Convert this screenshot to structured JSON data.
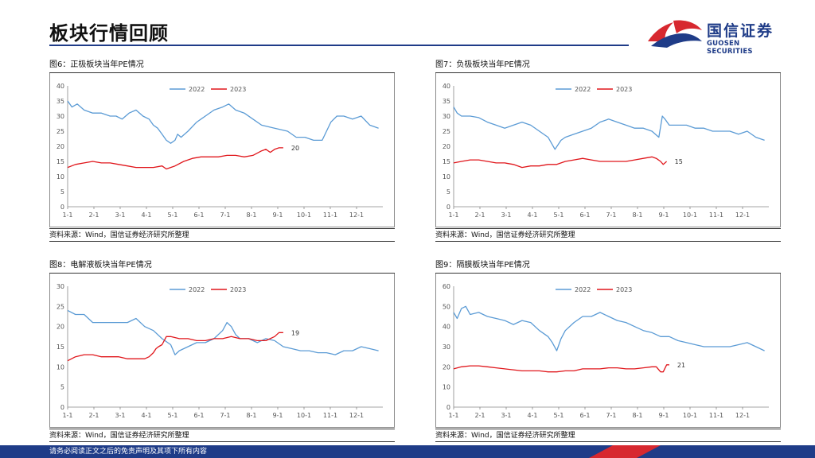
{
  "header": {
    "title": "板块行情回顾"
  },
  "logo": {
    "name_cn": "国信证券",
    "name_en": "GUOSEN SECURITIES",
    "colors": {
      "red": "#d7282f",
      "blue": "#1f3c88"
    }
  },
  "footer": {
    "disclaimer": "请务必阅读正文之后的免责声明及其项下所有内容"
  },
  "colors": {
    "series_2022": "#5b9bd5",
    "series_2023": "#e0161b"
  },
  "panels": [
    {
      "caption": "图6：正极板块当年PE情况",
      "source": "资料来源：Wind，国信证券经济研究所整理"
    },
    {
      "caption": "图7：负极板块当年PE情况",
      "source": "资料来源：Wind，国信证券经济研究所整理"
    },
    {
      "caption": "图8：电解液板块当年PE情况",
      "source": "资料来源：Wind，国信证券经济研究所整理"
    },
    {
      "caption": "图9：隔膜板块当年PE情况",
      "source": "资料来源：Wind，国信证券经济研究所整理"
    }
  ],
  "chart_data": [
    {
      "type": "line",
      "title": "图6：正极板块当年PE情况",
      "x_ticks": [
        "1-1",
        "2-1",
        "3-1",
        "4-1",
        "5-1",
        "6-1",
        "7-1",
        "8-1",
        "9-1",
        "10-1",
        "11-1",
        "12-1"
      ],
      "ylim": [
        0,
        40
      ],
      "y_ticks": [
        0,
        5,
        10,
        15,
        20,
        25,
        30,
        35,
        40
      ],
      "grid": false,
      "legend": "top",
      "end_label": "20",
      "series": [
        {
          "name": "2022",
          "x": [
            1,
            6,
            12,
            20,
            30,
            40,
            50,
            57,
            64,
            72,
            80,
            88,
            95,
            100,
            105,
            110,
            115,
            120,
            125,
            128,
            132,
            140,
            150,
            160,
            170,
            180,
            187,
            195,
            205,
            215,
            225,
            240,
            255,
            265,
            275,
            285,
            295,
            305,
            312,
            320,
            330,
            340,
            350,
            360
          ],
          "values": [
            35,
            33,
            34,
            32,
            31,
            31,
            30,
            30,
            29,
            31,
            32,
            30,
            29,
            27,
            26,
            24,
            22,
            21,
            22,
            24,
            23,
            25,
            28,
            30,
            32,
            33,
            34,
            32,
            31,
            29,
            27,
            26,
            25,
            23,
            23,
            22,
            22,
            28,
            30,
            30,
            29,
            30,
            27,
            26
          ]
        },
        {
          "name": "2023",
          "x": [
            1,
            10,
            20,
            30,
            40,
            50,
            60,
            70,
            80,
            90,
            100,
            110,
            115,
            125,
            135,
            145,
            155,
            165,
            175,
            185,
            195,
            205,
            215,
            225,
            230,
            235,
            240,
            245,
            250
          ],
          "values": [
            13,
            14,
            14.5,
            15,
            14.5,
            14.5,
            14,
            13.5,
            13,
            13,
            13,
            13.5,
            12.5,
            13.5,
            15,
            16,
            16.5,
            16.5,
            16.5,
            17,
            17,
            16.5,
            17,
            18.5,
            19,
            18,
            19,
            19.5,
            19.5
          ]
        }
      ]
    },
    {
      "type": "line",
      "title": "图7：负极板块当年PE情况",
      "x_ticks": [
        "1-1",
        "2-1",
        "3-1",
        "4-1",
        "5-1",
        "6-1",
        "7-1",
        "8-1",
        "9-1",
        "10-1",
        "11-1",
        "12-1"
      ],
      "ylim": [
        0,
        40
      ],
      "y_ticks": [
        0,
        5,
        10,
        15,
        20,
        25,
        30,
        35,
        40
      ],
      "grid": false,
      "legend": "top",
      "end_label": "15",
      "series": [
        {
          "name": "2022",
          "x": [
            1,
            5,
            10,
            20,
            30,
            40,
            50,
            60,
            70,
            80,
            90,
            100,
            110,
            118,
            125,
            130,
            140,
            150,
            160,
            170,
            180,
            190,
            200,
            210,
            220,
            230,
            238,
            242,
            245,
            250,
            260,
            270,
            280,
            290,
            300,
            310,
            320,
            330,
            340,
            350,
            360
          ],
          "values": [
            33,
            31,
            30,
            30,
            29.5,
            28,
            27,
            26,
            27,
            28,
            27,
            25,
            23,
            19,
            22,
            23,
            24,
            25,
            26,
            28,
            29,
            28,
            27,
            26,
            26,
            25,
            23,
            30,
            29,
            27,
            27,
            27,
            26,
            26,
            25,
            25,
            25,
            24,
            25,
            23,
            22
          ]
        },
        {
          "name": "2023",
          "x": [
            1,
            10,
            20,
            30,
            40,
            50,
            60,
            70,
            80,
            90,
            100,
            110,
            120,
            130,
            140,
            150,
            160,
            170,
            180,
            190,
            200,
            210,
            220,
            230,
            235,
            240,
            243,
            247
          ],
          "values": [
            14.5,
            15,
            15.5,
            15.5,
            15,
            14.5,
            14.5,
            14,
            13,
            13.5,
            13.5,
            14,
            14,
            15,
            15.5,
            16,
            15.5,
            15,
            15,
            15,
            15,
            15.5,
            16,
            16.5,
            16,
            15,
            14,
            15
          ]
        }
      ]
    },
    {
      "type": "line",
      "title": "图8：电解液板块当年PE情况",
      "x_ticks": [
        "1-1",
        "2-1",
        "3-1",
        "4-1",
        "5-1",
        "6-1",
        "7-1",
        "8-1",
        "9-1",
        "10-1",
        "11-1",
        "12-1"
      ],
      "ylim": [
        0,
        30
      ],
      "y_ticks": [
        0,
        5,
        10,
        15,
        20,
        25,
        30
      ],
      "grid": false,
      "legend": "top",
      "end_label": "19",
      "series": [
        {
          "name": "2022",
          "x": [
            1,
            10,
            20,
            30,
            40,
            50,
            60,
            70,
            80,
            90,
            100,
            110,
            120,
            125,
            130,
            140,
            150,
            160,
            170,
            180,
            185,
            190,
            195,
            200,
            210,
            220,
            230,
            240,
            250,
            260,
            270,
            280,
            290,
            300,
            310,
            320,
            330,
            340,
            350,
            360
          ],
          "values": [
            24,
            23,
            23,
            21,
            21,
            21,
            21,
            21,
            22,
            20,
            19,
            17,
            15.5,
            13,
            14,
            15,
            16,
            16,
            17,
            19,
            21,
            20,
            18,
            17,
            17,
            16,
            17,
            16.5,
            15,
            14.5,
            14,
            14,
            13.5,
            13.5,
            13,
            14,
            14,
            15,
            14.5,
            14
          ]
        },
        {
          "name": "2023",
          "x": [
            1,
            10,
            20,
            30,
            40,
            50,
            60,
            70,
            80,
            90,
            95,
            100,
            103,
            106,
            110,
            115,
            120,
            130,
            140,
            150,
            160,
            170,
            180,
            190,
            200,
            210,
            220,
            230,
            240,
            245,
            250
          ],
          "values": [
            11.5,
            12.5,
            13,
            13,
            12.5,
            12.5,
            12.5,
            12,
            12,
            12,
            12.5,
            13.5,
            14.5,
            15,
            15.5,
            17.5,
            17.5,
            17,
            17,
            16.5,
            16.5,
            17,
            17,
            17.5,
            17,
            17,
            16.5,
            16.5,
            17.5,
            18.5,
            18.5
          ]
        }
      ]
    },
    {
      "type": "line",
      "title": "图9：隔膜板块当年PE情况",
      "x_ticks": [
        "1-1",
        "2-1",
        "3-1",
        "4-1",
        "5-1",
        "6-1",
        "7-1",
        "8-1",
        "9-1",
        "10-1",
        "11-1",
        "12-1"
      ],
      "ylim": [
        0,
        60
      ],
      "y_ticks": [
        0,
        10,
        20,
        30,
        40,
        50,
        60
      ],
      "grid": false,
      "legend": "top",
      "end_label": "21",
      "series": [
        {
          "name": "2022",
          "x": [
            1,
            5,
            10,
            15,
            20,
            30,
            40,
            50,
            60,
            70,
            80,
            90,
            100,
            110,
            115,
            120,
            125,
            130,
            140,
            150,
            160,
            170,
            180,
            190,
            200,
            210,
            220,
            230,
            240,
            250,
            260,
            270,
            280,
            290,
            300,
            310,
            320,
            330,
            340,
            350,
            360
          ],
          "values": [
            47,
            44,
            49,
            50,
            46,
            47,
            45,
            44,
            43,
            41,
            43,
            42,
            38,
            35,
            32,
            28,
            34,
            38,
            42,
            45,
            45,
            47,
            45,
            43,
            42,
            40,
            38,
            37,
            35,
            35,
            33,
            32,
            31,
            30,
            30,
            30,
            30,
            31,
            32,
            30,
            28
          ]
        },
        {
          "name": "2023",
          "x": [
            1,
            10,
            20,
            30,
            40,
            50,
            60,
            70,
            80,
            90,
            100,
            110,
            120,
            130,
            140,
            150,
            160,
            170,
            180,
            190,
            200,
            210,
            220,
            230,
            235,
            240,
            243,
            247,
            250
          ],
          "values": [
            19,
            20,
            20.5,
            20.5,
            20,
            19.5,
            19,
            18.5,
            18,
            18,
            18,
            17.5,
            17.5,
            18,
            18,
            19,
            19,
            19,
            19.5,
            19.5,
            19,
            19,
            19.5,
            20,
            20,
            17.5,
            17.5,
            21,
            21
          ]
        }
      ]
    }
  ]
}
